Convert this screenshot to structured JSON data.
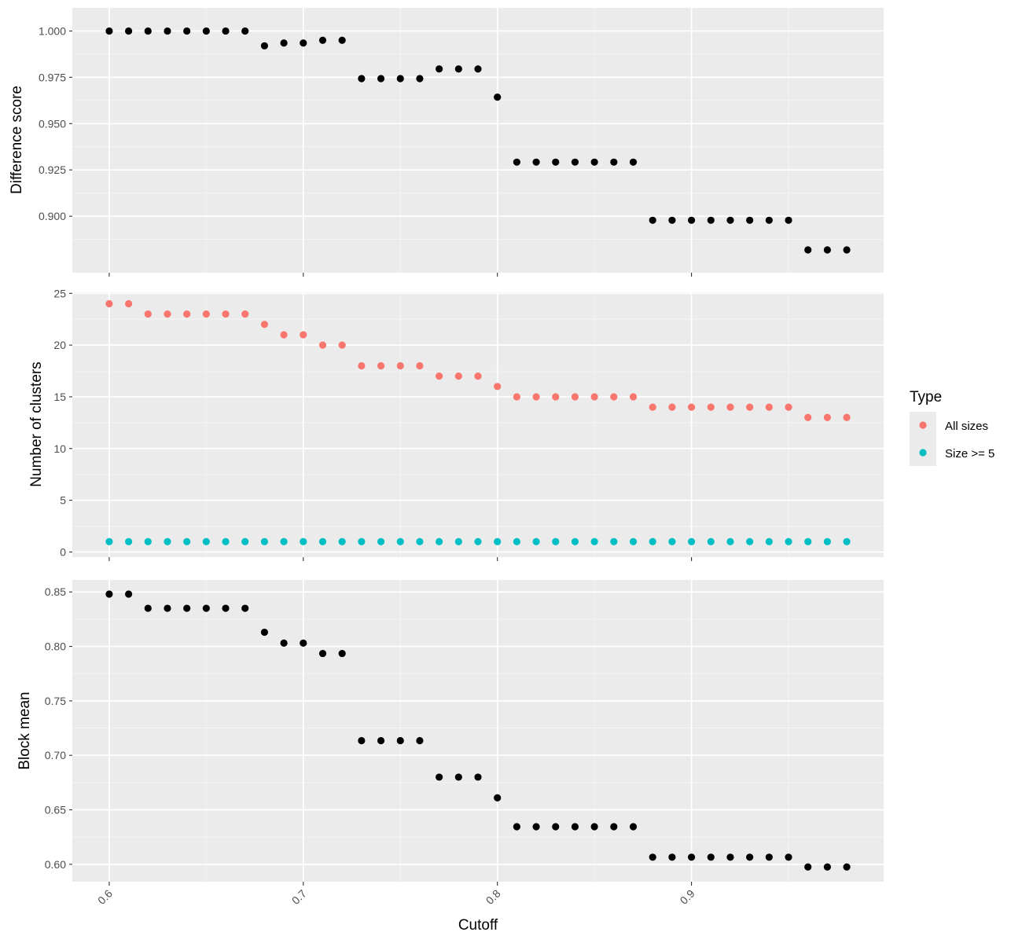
{
  "chart_data": {
    "type": "scatter",
    "xlabel": "Cutoff",
    "x_ticks": [
      "0.6",
      "0.7",
      "0.8",
      "0.9"
    ],
    "x_tick_values": [
      0.6,
      0.7,
      0.8,
      0.9
    ],
    "xlim": [
      0.581,
      0.999
    ],
    "x": [
      0.6,
      0.61,
      0.62,
      0.63,
      0.64,
      0.65,
      0.66,
      0.67,
      0.68,
      0.69,
      0.7,
      0.71,
      0.72,
      0.73,
      0.74,
      0.75,
      0.76,
      0.77,
      0.78,
      0.79,
      0.8,
      0.81,
      0.82,
      0.83,
      0.84,
      0.85,
      0.86,
      0.87,
      0.88,
      0.89,
      0.9,
      0.91,
      0.92,
      0.93,
      0.94,
      0.95,
      0.96,
      0.97,
      0.98
    ],
    "grid": true,
    "legend": {
      "title": "Type",
      "position": "right",
      "entries": [
        {
          "label": "All sizes",
          "color": "#F8766D"
        },
        {
          "label": "Size >= 5",
          "color": "#00BFC4"
        }
      ]
    },
    "panels": [
      {
        "ylabel": "Difference score",
        "ylim": [
          0.8695,
          1.0125
        ],
        "y_ticks": [
          "1.000",
          "0.975",
          "0.950",
          "0.925",
          "0.900"
        ],
        "y_tick_values": [
          1.0,
          0.975,
          0.95,
          0.925,
          0.9
        ],
        "series": [
          {
            "color": "#000000",
            "values": [
              1.0,
              1.0,
              1.0,
              1.0,
              1.0,
              1.0,
              1.0,
              1.0,
              0.992,
              0.9935,
              0.9935,
              0.995,
              0.995,
              0.9743,
              0.9743,
              0.9743,
              0.9743,
              0.9795,
              0.9795,
              0.9795,
              0.9643,
              0.9292,
              0.9292,
              0.9292,
              0.9292,
              0.9292,
              0.9292,
              0.9292,
              0.8978,
              0.8978,
              0.8978,
              0.8978,
              0.8978,
              0.8978,
              0.8978,
              0.8978,
              0.8818,
              0.8818,
              0.8818
            ]
          }
        ]
      },
      {
        "ylabel": "Number of clusters",
        "ylim": [
          -0.5,
          25.1
        ],
        "y_ticks": [
          "25",
          "20",
          "15",
          "10",
          "5",
          "0"
        ],
        "y_tick_values": [
          25,
          20,
          15,
          10,
          5,
          0
        ],
        "series": [
          {
            "name": "All sizes",
            "color": "#F8766D",
            "values": [
              24,
              24,
              23,
              23,
              23,
              23,
              23,
              23,
              22,
              21,
              21,
              20,
              20,
              18,
              18,
              18,
              18,
              17,
              17,
              17,
              16,
              15,
              15,
              15,
              15,
              15,
              15,
              15,
              14,
              14,
              14,
              14,
              14,
              14,
              14,
              14,
              13,
              13,
              13
            ]
          },
          {
            "name": "Size >= 5",
            "color": "#00BFC4",
            "values": [
              1,
              1,
              1,
              1,
              1,
              1,
              1,
              1,
              1,
              1,
              1,
              1,
              1,
              1,
              1,
              1,
              1,
              1,
              1,
              1,
              1,
              1,
              1,
              1,
              1,
              1,
              1,
              1,
              1,
              1,
              1,
              1,
              1,
              1,
              1,
              1,
              1,
              1,
              1
            ]
          }
        ]
      },
      {
        "ylabel": "Block mean",
        "ylim": [
          0.584,
          0.861
        ],
        "y_ticks": [
          "0.85",
          "0.80",
          "0.75",
          "0.70",
          "0.65",
          "0.60"
        ],
        "y_tick_values": [
          0.85,
          0.8,
          0.75,
          0.7,
          0.65,
          0.6
        ],
        "series": [
          {
            "color": "#000000",
            "values": [
              0.848,
              0.848,
              0.835,
              0.835,
              0.835,
              0.835,
              0.835,
              0.835,
              0.813,
              0.803,
              0.803,
              0.7935,
              0.7935,
              0.7135,
              0.7135,
              0.7135,
              0.7135,
              0.68,
              0.68,
              0.68,
              0.661,
              0.6345,
              0.6345,
              0.6345,
              0.6345,
              0.6345,
              0.6345,
              0.6345,
              0.6065,
              0.6065,
              0.6065,
              0.6065,
              0.6065,
              0.6065,
              0.6065,
              0.6065,
              0.5975,
              0.5975,
              0.5975
            ]
          }
        ]
      }
    ]
  }
}
